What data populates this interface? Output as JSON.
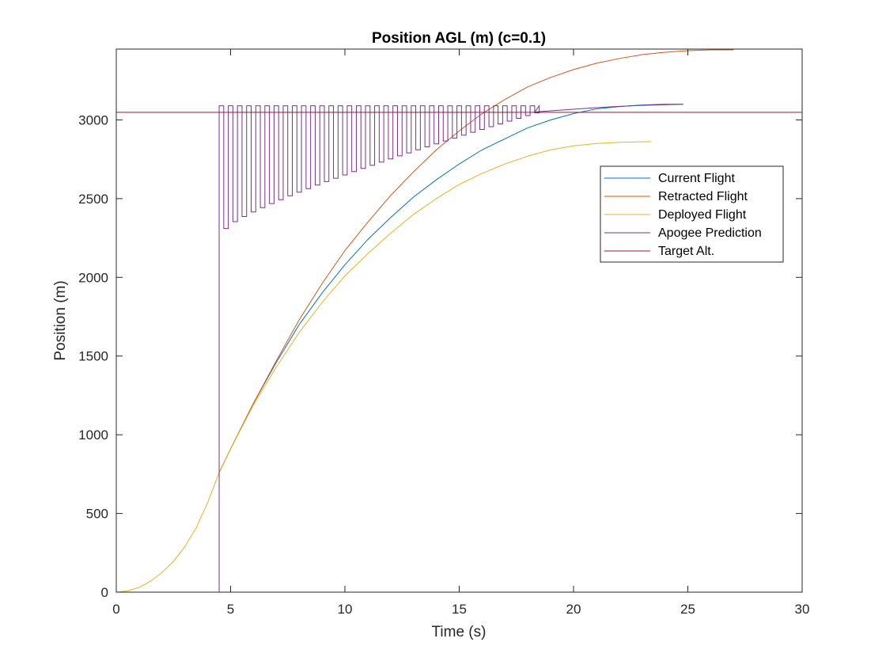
{
  "chart_data": {
    "type": "line",
    "title": "Position AGL (m) (c=0.1)",
    "xlabel": "Time (s)",
    "ylabel": "Position (m)",
    "xlim": [
      0,
      30
    ],
    "ylim": [
      0,
      3450
    ],
    "xticks": [
      0,
      5,
      10,
      15,
      20,
      25,
      30
    ],
    "yticks": [
      0,
      500,
      1000,
      1500,
      2000,
      2500,
      3000
    ],
    "legend_position": "top-right",
    "grid": false,
    "series": [
      {
        "name": "Current Flight",
        "color": "#0072BD",
        "points": [
          [
            4.5,
            760
          ],
          [
            5,
            910
          ],
          [
            6,
            1200
          ],
          [
            7,
            1460
          ],
          [
            8,
            1700
          ],
          [
            9,
            1900
          ],
          [
            10,
            2080
          ],
          [
            11,
            2240
          ],
          [
            12,
            2380
          ],
          [
            13,
            2510
          ],
          [
            14,
            2620
          ],
          [
            15,
            2720
          ],
          [
            16,
            2810
          ],
          [
            17,
            2880
          ],
          [
            18,
            2950
          ],
          [
            19,
            3000
          ],
          [
            20,
            3040
          ],
          [
            21,
            3070
          ],
          [
            22,
            3085
          ],
          [
            23,
            3095
          ],
          [
            24,
            3100
          ],
          [
            24.8,
            3100
          ]
        ]
      },
      {
        "name": "Retracted Flight",
        "color": "#D95319",
        "points": [
          [
            4.5,
            760
          ],
          [
            5,
            910
          ],
          [
            6,
            1200
          ],
          [
            7,
            1470
          ],
          [
            8,
            1730
          ],
          [
            9,
            1960
          ],
          [
            10,
            2170
          ],
          [
            11,
            2350
          ],
          [
            12,
            2520
          ],
          [
            13,
            2670
          ],
          [
            14,
            2810
          ],
          [
            15,
            2930
          ],
          [
            16,
            3040
          ],
          [
            17,
            3130
          ],
          [
            18,
            3210
          ],
          [
            19,
            3270
          ],
          [
            20,
            3320
          ],
          [
            21,
            3360
          ],
          [
            22,
            3390
          ],
          [
            23,
            3415
          ],
          [
            24,
            3430
          ],
          [
            25,
            3440
          ],
          [
            26,
            3445
          ],
          [
            27,
            3445
          ]
        ]
      },
      {
        "name": "Deployed Flight",
        "color": "#EDB120",
        "points": [
          [
            0,
            0
          ],
          [
            0.5,
            8
          ],
          [
            1,
            30
          ],
          [
            1.5,
            70
          ],
          [
            2,
            125
          ],
          [
            2.5,
            195
          ],
          [
            3,
            290
          ],
          [
            3.5,
            410
          ],
          [
            4,
            570
          ],
          [
            4.5,
            760
          ],
          [
            5,
            910
          ],
          [
            6,
            1190
          ],
          [
            7,
            1430
          ],
          [
            8,
            1650
          ],
          [
            9,
            1840
          ],
          [
            10,
            2010
          ],
          [
            11,
            2150
          ],
          [
            12,
            2280
          ],
          [
            13,
            2400
          ],
          [
            14,
            2500
          ],
          [
            15,
            2590
          ],
          [
            16,
            2660
          ],
          [
            17,
            2720
          ],
          [
            18,
            2770
          ],
          [
            19,
            2810
          ],
          [
            20,
            2835
          ],
          [
            21,
            2850
          ],
          [
            22,
            2858
          ],
          [
            23,
            2861
          ],
          [
            23.4,
            2862
          ]
        ]
      },
      {
        "name": "Apogee Prediction",
        "color": "#7E2F8E",
        "sawtooth": {
          "start": 4.5,
          "period": 0.4,
          "high": 3090,
          "low_start": 2310,
          "low_end": 3045,
          "end_sawtooth": 18.3,
          "tail": [
            [
              18.3,
              3050
            ],
            [
              19,
              3058
            ],
            [
              20,
              3068
            ],
            [
              21,
              3078
            ],
            [
              22,
              3086
            ],
            [
              23,
              3092
            ],
            [
              24,
              3097
            ],
            [
              24.8,
              3100
            ]
          ]
        }
      },
      {
        "name": "Target Alt.",
        "color": "#A2142F",
        "hline": 3048
      }
    ]
  }
}
